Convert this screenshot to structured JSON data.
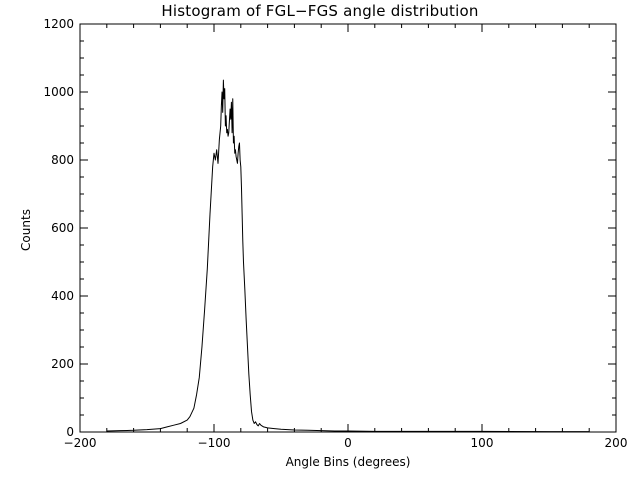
{
  "chart_data": {
    "type": "line",
    "title": "Histogram of FGL−FGS angle distribution",
    "xlabel": "Angle Bins (degrees)",
    "ylabel": "Counts",
    "xlim": [
      -200,
      200
    ],
    "ylim": [
      0,
      1200
    ],
    "xticks": [
      -200,
      -100,
      0,
      100,
      200
    ],
    "xtick_labels": [
      "−200",
      "−100",
      "0",
      "100",
      "200"
    ],
    "yticks": [
      0,
      200,
      400,
      600,
      800,
      1000,
      1200
    ],
    "ytick_labels": [
      "0",
      "200",
      "400",
      "600",
      "800",
      "1000",
      "1200"
    ],
    "grid": false,
    "series": [
      {
        "color": "#000000",
        "x": [
          -180,
          -170,
          -160,
          -150,
          -140,
          -135,
          -130,
          -125,
          -120,
          -118,
          -115,
          -113,
          -111,
          -109,
          -107,
          -105,
          -104,
          -103,
          -102,
          -101,
          -100,
          -99,
          -98,
          -97,
          -96,
          -95,
          -94.5,
          -94,
          -93.5,
          -93,
          -92.5,
          -92,
          -91.5,
          -91,
          -90.5,
          -90,
          -89.5,
          -89,
          -88,
          -87.5,
          -87,
          -86.5,
          -86,
          -85.5,
          -85,
          -84.5,
          -84,
          -83.5,
          -83,
          -82.5,
          -82,
          -81.5,
          -81,
          -80.5,
          -80,
          -79.5,
          -79,
          -78.5,
          -78,
          -77,
          -76,
          -75,
          -74,
          -73,
          -72,
          -71,
          -70,
          -69,
          -68,
          -67,
          -66,
          -65,
          -63,
          -60,
          -55,
          -50,
          -40,
          -30,
          -20,
          -10,
          0,
          20,
          50,
          100,
          150,
          180
        ],
        "y": [
          3,
          4,
          5,
          7,
          10,
          15,
          20,
          25,
          35,
          45,
          70,
          110,
          160,
          250,
          360,
          480,
          560,
          640,
          710,
          780,
          820,
          800,
          830,
          790,
          860,
          900,
          960,
          1000,
          940,
          1035,
          980,
          1010,
          900,
          930,
          880,
          890,
          870,
          880,
          950,
          920,
          970,
          880,
          980,
          850,
          870,
          820,
          830,
          810,
          800,
          790,
          820,
          840,
          850,
          800,
          780,
          720,
          640,
          560,
          500,
          420,
          330,
          250,
          170,
          110,
          60,
          35,
          25,
          30,
          22,
          18,
          25,
          20,
          15,
          12,
          10,
          8,
          6,
          5,
          4,
          3,
          3,
          2,
          2,
          2,
          1,
          1
        ]
      }
    ]
  }
}
